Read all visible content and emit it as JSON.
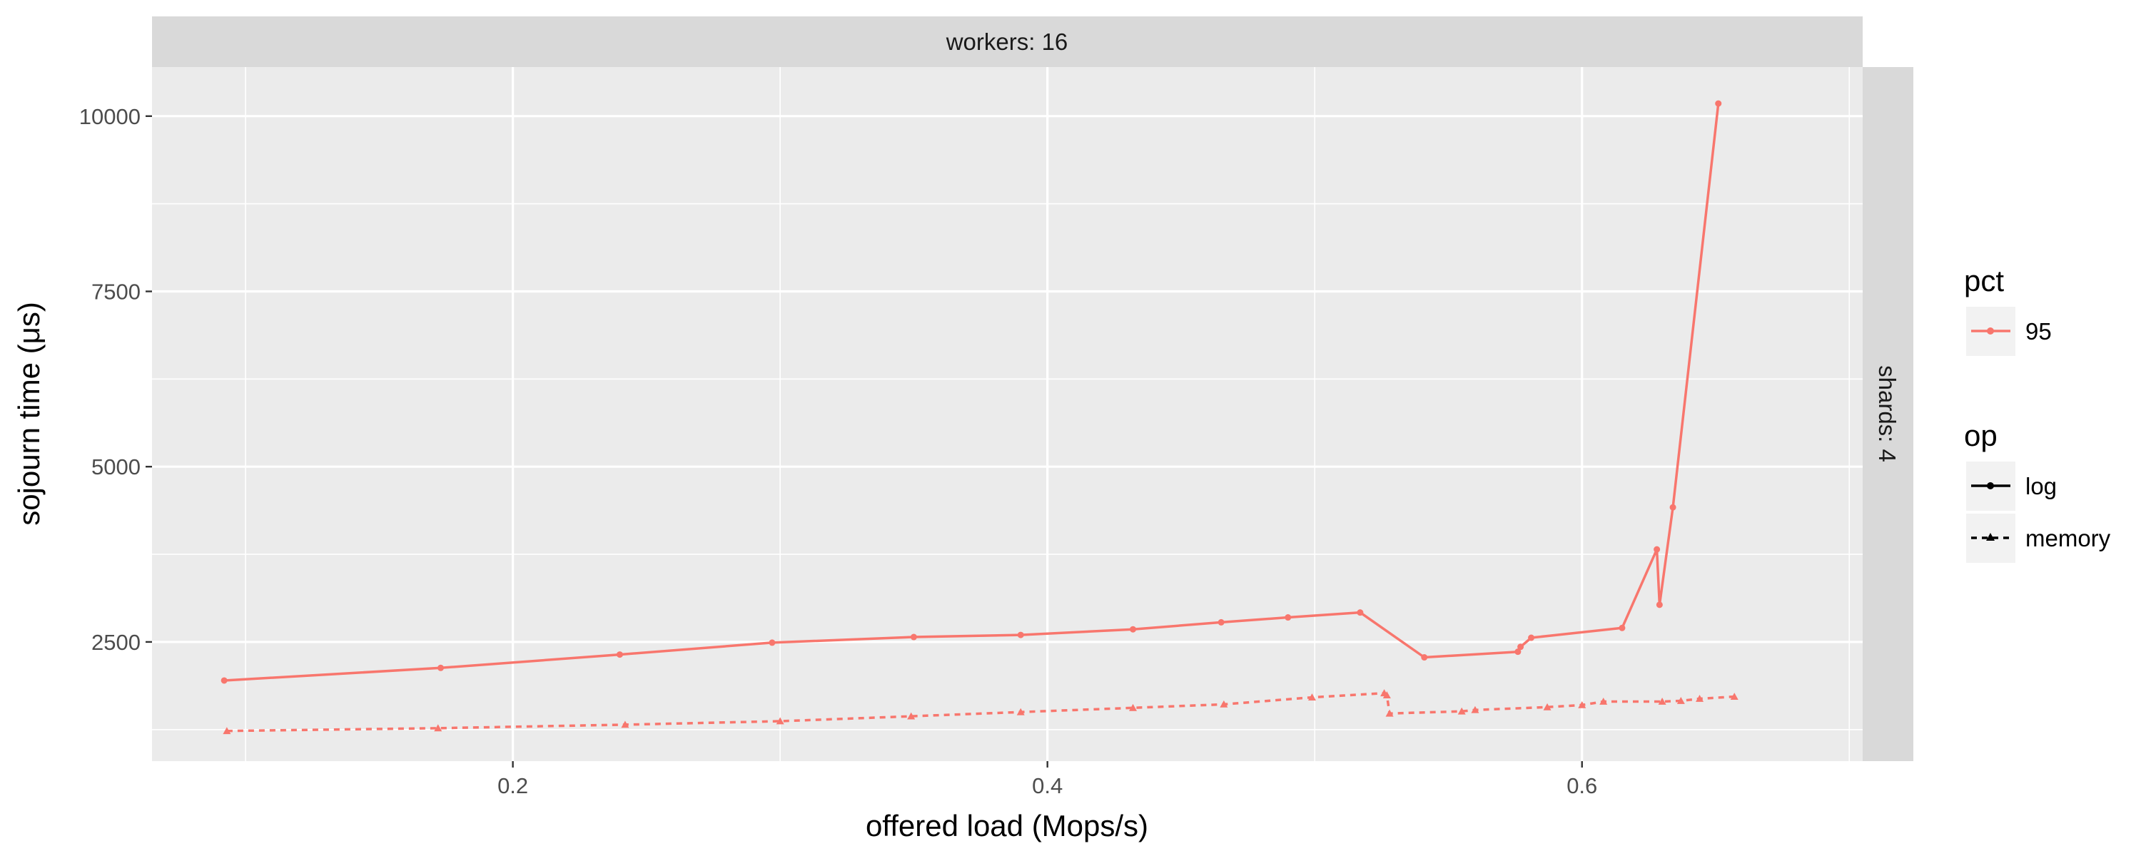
{
  "chart_data": {
    "type": "line",
    "facet_top": "workers: 16",
    "facet_right": "shards: 4",
    "xlabel": "offered load (Mops/s)",
    "ylabel": "sojourn time (μs)",
    "xlim": [
      0.065,
      0.705
    ],
    "ylim": [
      800,
      10700
    ],
    "x_ticks": [
      {
        "value": 0.2,
        "label": "0.2"
      },
      {
        "value": 0.4,
        "label": "0.4"
      },
      {
        "value": 0.6,
        "label": "0.6"
      }
    ],
    "y_ticks": [
      {
        "value": 2500,
        "label": "2500"
      },
      {
        "value": 5000,
        "label": "5000"
      },
      {
        "value": 7500,
        "label": "7500"
      },
      {
        "value": 10000,
        "label": "10000"
      }
    ],
    "grid": true,
    "legend_position": "right",
    "legend_pct": {
      "title": "pct",
      "items": [
        {
          "label": "95",
          "color": "#F8766D"
        }
      ]
    },
    "legend_op": {
      "title": "op",
      "items": [
        {
          "label": "log",
          "linetype": "solid",
          "marker": "circle"
        },
        {
          "label": "memory",
          "linetype": "dashed",
          "marker": "triangle"
        }
      ]
    },
    "series": [
      {
        "pct": "95",
        "op": "log",
        "color": "#F8766D",
        "linetype": "solid",
        "marker": "circle",
        "points": [
          [
            0.092,
            1950
          ],
          [
            0.173,
            2130
          ],
          [
            0.24,
            2320
          ],
          [
            0.297,
            2490
          ],
          [
            0.35,
            2570
          ],
          [
            0.39,
            2600
          ],
          [
            0.432,
            2680
          ],
          [
            0.465,
            2780
          ],
          [
            0.49,
            2850
          ],
          [
            0.517,
            2920
          ],
          [
            0.541,
            2280
          ],
          [
            0.576,
            2360
          ],
          [
            0.577,
            2430
          ],
          [
            0.581,
            2560
          ],
          [
            0.615,
            2700
          ],
          [
            0.628,
            3820
          ],
          [
            0.629,
            3030
          ],
          [
            0.634,
            4420
          ],
          [
            0.651,
            10180
          ]
        ]
      },
      {
        "pct": "95",
        "op": "memory",
        "color": "#F8766D",
        "linetype": "dashed",
        "marker": "triangle",
        "points": [
          [
            0.093,
            1230
          ],
          [
            0.172,
            1270
          ],
          [
            0.242,
            1320
          ],
          [
            0.3,
            1370
          ],
          [
            0.349,
            1440
          ],
          [
            0.39,
            1500
          ],
          [
            0.432,
            1560
          ],
          [
            0.466,
            1610
          ],
          [
            0.499,
            1710
          ],
          [
            0.526,
            1770
          ],
          [
            0.527,
            1740
          ],
          [
            0.528,
            1480
          ],
          [
            0.555,
            1510
          ],
          [
            0.56,
            1530
          ],
          [
            0.587,
            1570
          ],
          [
            0.6,
            1600
          ],
          [
            0.608,
            1650
          ],
          [
            0.63,
            1650
          ],
          [
            0.637,
            1660
          ],
          [
            0.644,
            1690
          ],
          [
            0.657,
            1720
          ]
        ]
      }
    ]
  }
}
